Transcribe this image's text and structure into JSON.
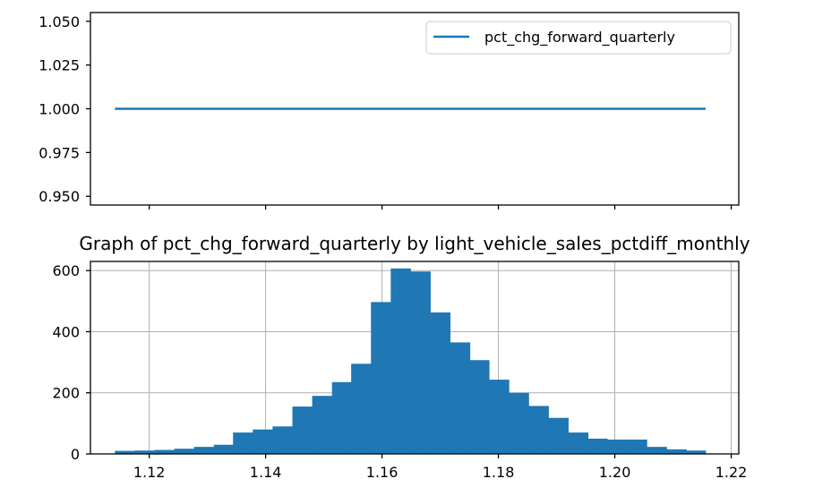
{
  "chart_data": [
    {
      "type": "line",
      "title": "",
      "xlabel": "",
      "ylabel": "",
      "xlim": [
        1.1099,
        1.2213
      ],
      "ylim": [
        0.945,
        1.055
      ],
      "yticks": [
        0.95,
        0.975,
        1.0,
        1.025,
        1.05
      ],
      "ytick_labels": [
        "0.950",
        "0.975",
        "1.000",
        "1.025",
        "1.050"
      ],
      "xticks": [
        1.12,
        1.14,
        1.16,
        1.18,
        1.2,
        1.22
      ],
      "xtick_labels_visible": false,
      "grid": false,
      "legend_position": "upper right",
      "series": [
        {
          "name": "pct_chg_forward_quarterly",
          "x": [
            1.1141,
            1.2156
          ],
          "y": [
            1.0,
            1.0
          ],
          "color": "#1f77b4"
        }
      ]
    },
    {
      "type": "bar",
      "subtype": "histogram",
      "title": "Graph of pct_chg_forward_quarterly by light_vehicle_sales_pctdiff_monthly",
      "xlabel": "",
      "ylabel": "",
      "xlim": [
        1.1099,
        1.2213
      ],
      "ylim": [
        0,
        630
      ],
      "xticks": [
        1.12,
        1.14,
        1.16,
        1.18,
        1.2,
        1.22
      ],
      "xtick_labels": [
        "1.12",
        "1.14",
        "1.16",
        "1.18",
        "1.20",
        "1.22"
      ],
      "yticks": [
        0,
        200,
        400,
        600
      ],
      "ytick_labels": [
        "0",
        "200",
        "400",
        "600"
      ],
      "grid": true,
      "color": "#1f77b4",
      "bins": [
        {
          "x0": 1.1141,
          "x1": 1.1175,
          "count": 10
        },
        {
          "x0": 1.1175,
          "x1": 1.1209,
          "count": 11
        },
        {
          "x0": 1.1209,
          "x1": 1.1243,
          "count": 13
        },
        {
          "x0": 1.1243,
          "x1": 1.1277,
          "count": 17
        },
        {
          "x0": 1.1277,
          "x1": 1.1311,
          "count": 23
        },
        {
          "x0": 1.1311,
          "x1": 1.1344,
          "count": 30
        },
        {
          "x0": 1.1344,
          "x1": 1.1378,
          "count": 70
        },
        {
          "x0": 1.1378,
          "x1": 1.1412,
          "count": 80
        },
        {
          "x0": 1.1412,
          "x1": 1.1446,
          "count": 90
        },
        {
          "x0": 1.1446,
          "x1": 1.148,
          "count": 155
        },
        {
          "x0": 1.148,
          "x1": 1.1514,
          "count": 190
        },
        {
          "x0": 1.1514,
          "x1": 1.1547,
          "count": 235
        },
        {
          "x0": 1.1547,
          "x1": 1.1581,
          "count": 295
        },
        {
          "x0": 1.1581,
          "x1": 1.1615,
          "count": 497
        },
        {
          "x0": 1.1615,
          "x1": 1.1649,
          "count": 607
        },
        {
          "x0": 1.1649,
          "x1": 1.1683,
          "count": 597
        },
        {
          "x0": 1.1683,
          "x1": 1.1717,
          "count": 463
        },
        {
          "x0": 1.1717,
          "x1": 1.1751,
          "count": 365
        },
        {
          "x0": 1.1751,
          "x1": 1.1784,
          "count": 307
        },
        {
          "x0": 1.1784,
          "x1": 1.1818,
          "count": 243
        },
        {
          "x0": 1.1818,
          "x1": 1.1852,
          "count": 200
        },
        {
          "x0": 1.1852,
          "x1": 1.1886,
          "count": 157
        },
        {
          "x0": 1.1886,
          "x1": 1.192,
          "count": 118
        },
        {
          "x0": 1.192,
          "x1": 1.1954,
          "count": 70
        },
        {
          "x0": 1.1954,
          "x1": 1.1987,
          "count": 50
        },
        {
          "x0": 1.1987,
          "x1": 1.2021,
          "count": 47
        },
        {
          "x0": 1.2021,
          "x1": 1.2055,
          "count": 47
        },
        {
          "x0": 1.2055,
          "x1": 1.2089,
          "count": 23
        },
        {
          "x0": 1.2089,
          "x1": 1.2123,
          "count": 15
        },
        {
          "x0": 1.2123,
          "x1": 1.2156,
          "count": 11
        }
      ]
    }
  ]
}
